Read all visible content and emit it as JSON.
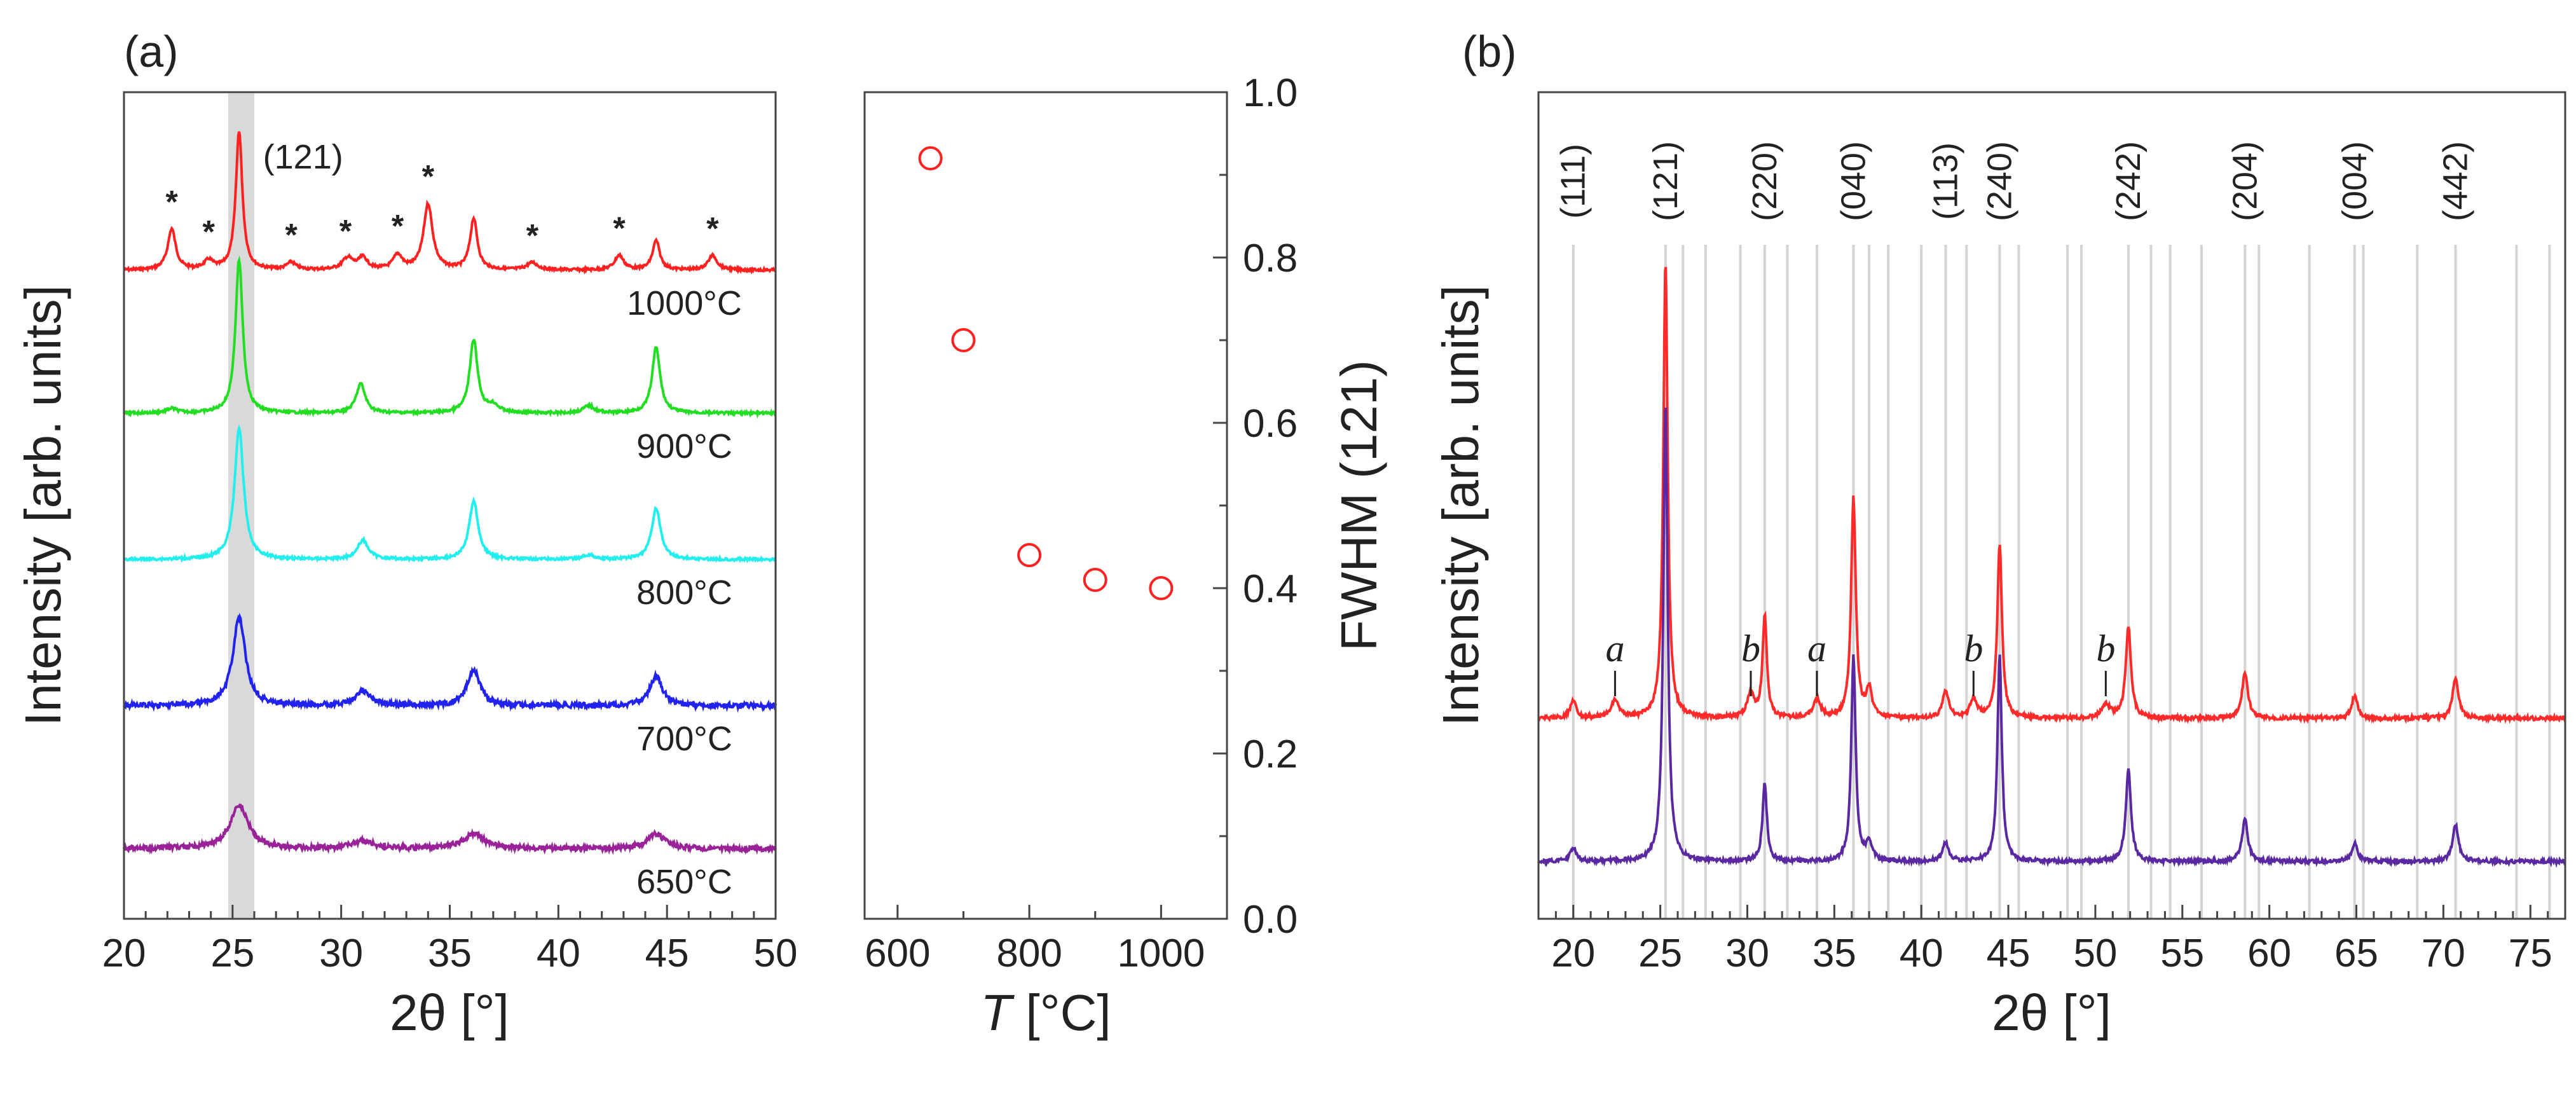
{
  "chart_data": [
    {
      "panel": "(a)",
      "type": "line",
      "title": "",
      "xlabel": "2θ [°]",
      "ylabel": "Intensity [arb. units]",
      "xlim": [
        20,
        50
      ],
      "xticks": [
        20,
        25,
        30,
        35,
        40,
        45,
        50
      ],
      "highlight_band": [
        24.8,
        26.0
      ],
      "highlight_label": "(121)",
      "impurity_marker": "*",
      "impurity_positions": [
        22.2,
        23.9,
        27.7,
        30.2,
        32.6,
        34.0,
        38.8,
        42.8,
        47.1
      ],
      "series": [
        {
          "name": "1000°C",
          "color": "#ff2020",
          "offset": 4,
          "peaks": [
            [
              22.2,
              0.28,
              0.22
            ],
            [
              23.9,
              0.06,
              0.25
            ],
            [
              25.3,
              0.95,
              0.18
            ],
            [
              27.7,
              0.05,
              0.25
            ],
            [
              30.3,
              0.08,
              0.3
            ],
            [
              31.0,
              0.08,
              0.25
            ],
            [
              32.6,
              0.1,
              0.25
            ],
            [
              34.0,
              0.45,
              0.25
            ],
            [
              36.1,
              0.35,
              0.2
            ],
            [
              38.8,
              0.05,
              0.3
            ],
            [
              42.8,
              0.1,
              0.25
            ],
            [
              44.5,
              0.2,
              0.2
            ],
            [
              47.1,
              0.1,
              0.25
            ]
          ]
        },
        {
          "name": "900°C",
          "color": "#22dd22",
          "offset": 3,
          "peaks": [
            [
              22.2,
              0.03,
              0.3
            ],
            [
              25.3,
              1.05,
              0.2
            ],
            [
              30.9,
              0.2,
              0.25
            ],
            [
              36.1,
              0.5,
              0.22
            ],
            [
              37.0,
              0.05,
              0.3
            ],
            [
              41.4,
              0.05,
              0.3
            ],
            [
              44.5,
              0.45,
              0.22
            ]
          ]
        },
        {
          "name": "800°C",
          "color": "#22eeee",
          "offset": 2,
          "peaks": [
            [
              25.3,
              0.9,
              0.25
            ],
            [
              31.0,
              0.13,
              0.3
            ],
            [
              36.1,
              0.4,
              0.25
            ],
            [
              41.4,
              0.03,
              0.3
            ],
            [
              44.5,
              0.35,
              0.25
            ]
          ]
        },
        {
          "name": "700°C",
          "color": "#2222ee",
          "offset": 1,
          "peaks": [
            [
              25.3,
              0.6,
              0.35
            ],
            [
              31.0,
              0.1,
              0.4
            ],
            [
              36.1,
              0.25,
              0.35
            ],
            [
              44.5,
              0.2,
              0.35
            ]
          ]
        },
        {
          "name": "650°C",
          "color": "#992299",
          "offset": 0,
          "peaks": [
            [
              25.3,
              0.3,
              0.5
            ],
            [
              31.0,
              0.05,
              0.6
            ],
            [
              36.1,
              0.1,
              0.6
            ],
            [
              44.5,
              0.1,
              0.5
            ]
          ]
        }
      ]
    },
    {
      "panel": "(a) inset",
      "type": "scatter",
      "title": "",
      "xlabel": "T [°C]",
      "xlabel_var": "T",
      "xlabel_unit": " [°C]",
      "ylabel": "FWHM (121)",
      "xlim": [
        550,
        1100
      ],
      "ylim": [
        0.0,
        1.0
      ],
      "xticks": [
        600,
        800,
        1000
      ],
      "yticks": [
        "0.0",
        "0.2",
        "0.4",
        "0.6",
        "0.8",
        "1.0"
      ],
      "points": [
        {
          "x": 650,
          "y": 0.92
        },
        {
          "x": 700,
          "y": 0.7
        },
        {
          "x": 800,
          "y": 0.44
        },
        {
          "x": 900,
          "y": 0.41
        },
        {
          "x": 1000,
          "y": 0.4
        }
      ]
    },
    {
      "panel": "(b)",
      "type": "line",
      "title": "",
      "xlabel": "2θ [°]",
      "ylabel": "Intensity [arb. units]",
      "xlim": [
        18,
        77
      ],
      "xticks": [
        20,
        25,
        30,
        35,
        40,
        45,
        50,
        55,
        60,
        65,
        70,
        75
      ],
      "hkl_labels": [
        {
          "label": "(111)",
          "x": 20.0
        },
        {
          "label": "(121)",
          "x": 25.3
        },
        {
          "label": "(220)",
          "x": 31.0
        },
        {
          "label": "(040)",
          "x": 36.1
        },
        {
          "label": "(113)",
          "x": 41.4
        },
        {
          "label": "(240)",
          "x": 44.5
        },
        {
          "label": "(242)",
          "x": 51.9
        },
        {
          "label": "(204)",
          "x": 58.6
        },
        {
          "label": "(004)",
          "x": 64.9
        },
        {
          "label": "(442)",
          "x": 70.7
        }
      ],
      "reference_lines": [
        20.0,
        25.3,
        26.3,
        27.6,
        29.6,
        31.0,
        32.3,
        34.0,
        36.1,
        37.0,
        38.1,
        40.0,
        41.4,
        42.6,
        44.5,
        45.6,
        48.4,
        49.2,
        51.9,
        53.2,
        54.3,
        56.1,
        58.6,
        59.4,
        62.3,
        64.9,
        65.4,
        68.5,
        70.7,
        74.2,
        76.1
      ],
      "impurity_marks": [
        {
          "label": "a",
          "x": 22.4
        },
        {
          "label": "b",
          "x": 30.2
        },
        {
          "label": "a",
          "x": 34.0
        },
        {
          "label": "b",
          "x": 43.0
        },
        {
          "label": "b",
          "x": 50.6
        }
      ],
      "series": [
        {
          "name": "upper",
          "color": "#ff2a2a",
          "offset": 1,
          "peaks": [
            [
              20.0,
              0.04,
              0.2
            ],
            [
              22.4,
              0.04,
              0.25
            ],
            [
              25.3,
              1.0,
              0.15
            ],
            [
              30.2,
              0.05,
              0.25
            ],
            [
              31.0,
              0.22,
              0.15
            ],
            [
              34.0,
              0.04,
              0.25
            ],
            [
              36.1,
              0.48,
              0.16
            ],
            [
              37.0,
              0.06,
              0.2
            ],
            [
              41.4,
              0.06,
              0.2
            ],
            [
              43.0,
              0.04,
              0.25
            ],
            [
              44.5,
              0.38,
              0.16
            ],
            [
              50.6,
              0.03,
              0.3
            ],
            [
              51.9,
              0.2,
              0.18
            ],
            [
              58.6,
              0.1,
              0.2
            ],
            [
              64.9,
              0.05,
              0.2
            ],
            [
              70.7,
              0.09,
              0.2
            ]
          ]
        },
        {
          "name": "lower",
          "color": "#5a28a0",
          "offset": 0,
          "peaks": [
            [
              20.0,
              0.03,
              0.2
            ],
            [
              25.3,
              1.0,
              0.15
            ],
            [
              31.0,
              0.17,
              0.15
            ],
            [
              36.1,
              0.45,
              0.15
            ],
            [
              37.0,
              0.04,
              0.2
            ],
            [
              41.4,
              0.04,
              0.2
            ],
            [
              44.5,
              0.45,
              0.15
            ],
            [
              51.9,
              0.2,
              0.18
            ],
            [
              58.6,
              0.09,
              0.2
            ],
            [
              64.9,
              0.04,
              0.2
            ],
            [
              70.7,
              0.08,
              0.2
            ]
          ]
        }
      ]
    }
  ]
}
